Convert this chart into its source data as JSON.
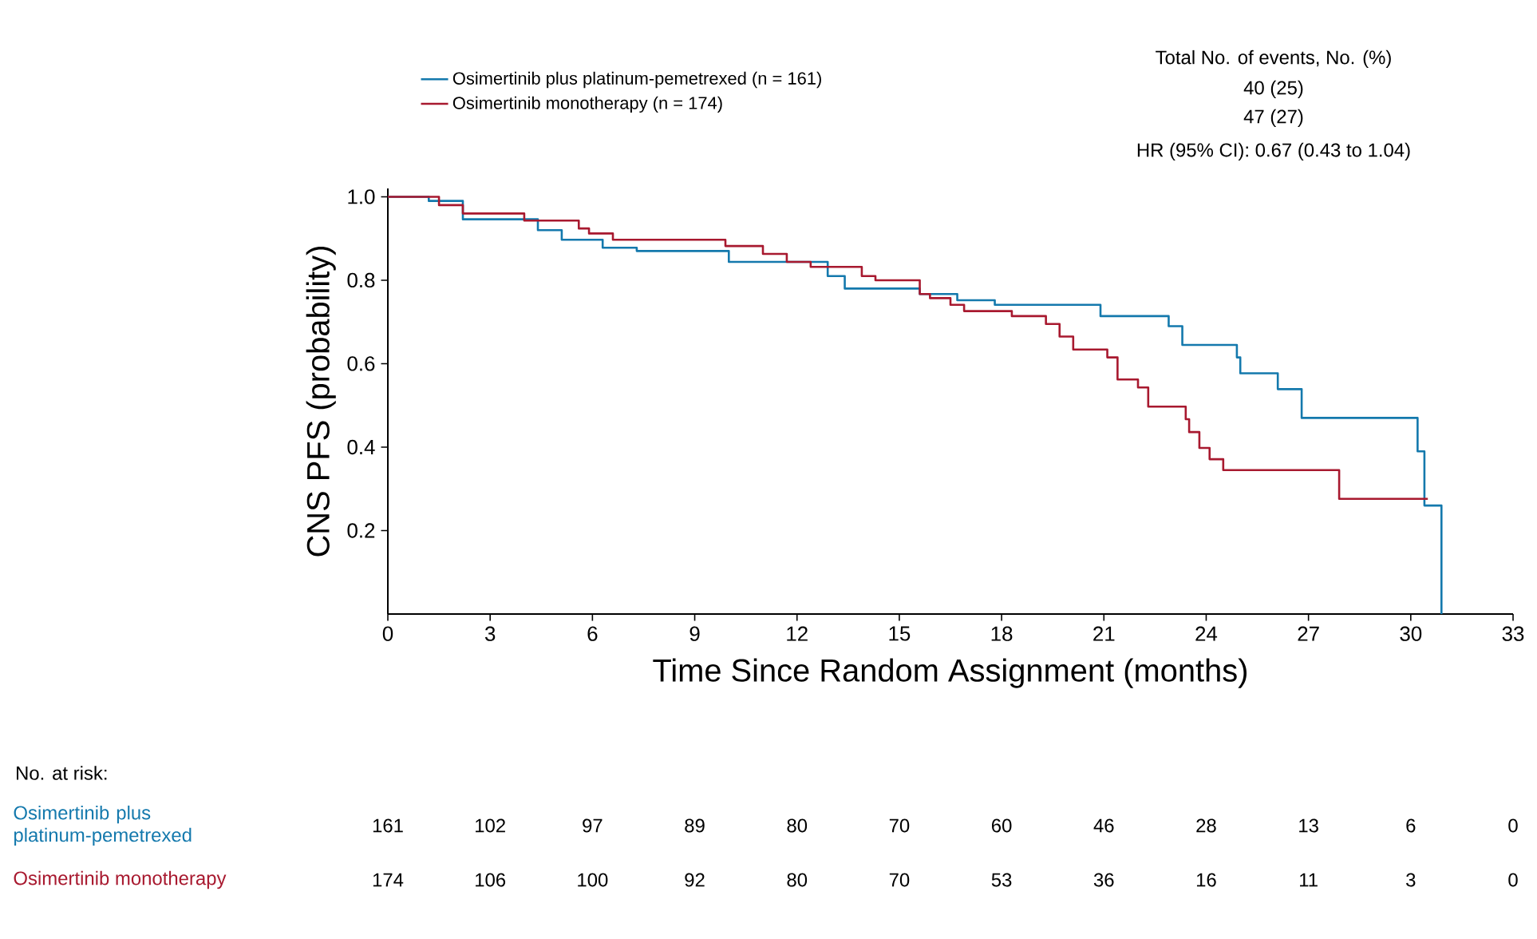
{
  "chart_data": {
    "type": "step",
    "xlabel": "Time Since Random Assignment (months)",
    "ylabel": "CNS PFS (probability)",
    "xlim": [
      0,
      33
    ],
    "xticks": [
      0,
      3,
      6,
      9,
      12,
      15,
      18,
      21,
      24,
      27,
      30,
      33
    ],
    "ylim": [
      0,
      1.02
    ],
    "yticks": [
      {
        "value": 0.2,
        "label": "0.2"
      },
      {
        "value": 0.4,
        "label": "0.4"
      },
      {
        "value": 0.6,
        "label": "0.6"
      },
      {
        "value": 0.8,
        "label": "0.8"
      },
      {
        "value": 1,
        "label": "1.0"
      }
    ],
    "legend": "top",
    "grid": false,
    "marker": "none",
    "line_style": "solid",
    "series": [
      {
        "name": "Osimertinib plus platinum-pemetrexed (n = 161)",
        "color": "#1479ad",
        "x": [
          0,
          1.2,
          2.2,
          4.4,
          5.1,
          6.3,
          7.3,
          10.0,
          12.9,
          13.4,
          15.6,
          16.7,
          17.8,
          20.9,
          22.9,
          23.3,
          24.9,
          25.0,
          26.1,
          26.8,
          30.2,
          30.4,
          30.9
        ],
        "values": [
          1.0,
          0.99,
          0.946,
          0.92,
          0.897,
          0.878,
          0.87,
          0.844,
          0.81,
          0.78,
          0.767,
          0.752,
          0.741,
          0.714,
          0.69,
          0.645,
          0.615,
          0.577,
          0.539,
          0.47,
          0.39,
          0.26,
          0
        ]
      },
      {
        "name": "Osimertinib monotherapy (n = 174)",
        "color": "#a8192f",
        "x": [
          0,
          1.5,
          2.2,
          4.0,
          5.6,
          5.9,
          6.6,
          9.9,
          11.0,
          11.7,
          12.4,
          13.9,
          14.3,
          15.6,
          15.9,
          16.5,
          16.9,
          18.3,
          19.3,
          19.7,
          20.1,
          21.1,
          21.4,
          22.0,
          22.3,
          23.4,
          23.5,
          23.8,
          24.1,
          24.5,
          27.9,
          30.5
        ],
        "values": [
          1.0,
          0.98,
          0.96,
          0.943,
          0.924,
          0.912,
          0.897,
          0.882,
          0.863,
          0.844,
          0.832,
          0.81,
          0.8,
          0.767,
          0.757,
          0.741,
          0.726,
          0.714,
          0.695,
          0.665,
          0.634,
          0.615,
          0.562,
          0.543,
          0.497,
          0.467,
          0.436,
          0.398,
          0.371,
          0.345,
          0.276,
          0.276
        ]
      }
    ],
    "annotations": [
      "Total No. of events,  No. (%)",
      "40 (25)",
      "47 (27)",
      "HR (95% CI): 0.67 (0.43 to 1.04)",
      "No. at risk:",
      "Osimertinib plus platinum-pemetrexed",
      "161",
      "102",
      "97",
      "89",
      "80",
      "70",
      "60",
      "46",
      "28",
      "13",
      "6",
      "0",
      "Osimertinib monotherapy",
      "174",
      "106",
      "100",
      "92",
      "80",
      "70",
      "53",
      "36",
      "16",
      "11",
      "3",
      "0"
    ]
  }
}
